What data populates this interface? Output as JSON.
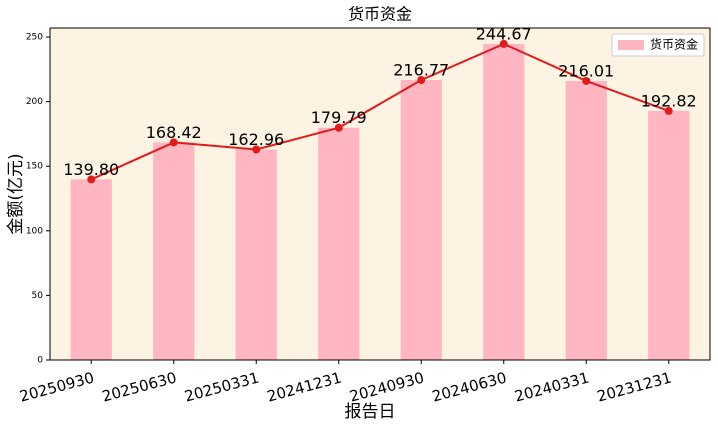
{
  "chart_data": {
    "type": "bar",
    "title": "货币资金",
    "x_label": "报告日",
    "y_label": "金额(亿元)",
    "categories": [
      "20250930",
      "20250630",
      "20250331",
      "20241231",
      "20240930",
      "20240630",
      "20240331",
      "20231231"
    ],
    "series": [
      {
        "name": "货币资金",
        "color": "#ffb6c1",
        "values": [
          139.8,
          168.42,
          162.96,
          179.79,
          216.77,
          244.67,
          216.01,
          192.82
        ],
        "value_labels": [
          "139.80",
          "168.42",
          "162.96",
          "179.79",
          "216.77",
          "244.67",
          "216.01",
          "192.82"
        ]
      }
    ],
    "line_color": "#e31a1c",
    "background": "#fdf3e3",
    "ylim": [
      0,
      257
    ],
    "yticks": [
      0,
      50,
      100,
      150,
      200,
      250
    ],
    "legend": "upper right"
  }
}
